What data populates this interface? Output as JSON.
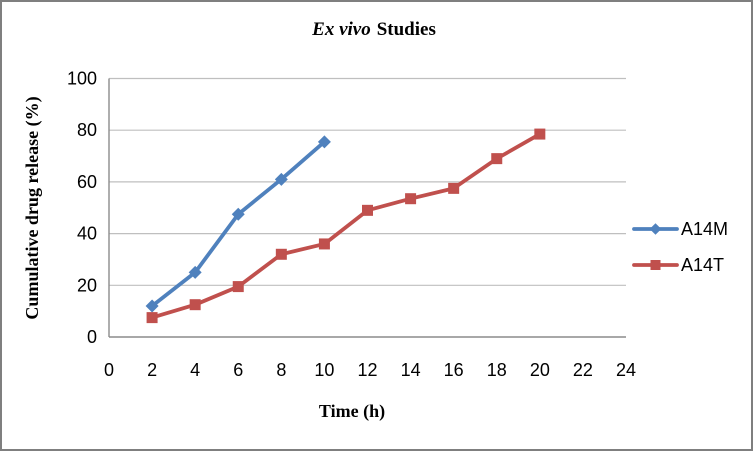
{
  "canvas": {
    "background": "#FFFFFF",
    "border_color": "#7F7F7F"
  },
  "chart_data": {
    "type": "line",
    "title": {
      "italic_part": "Ex vivo",
      "rest_part": "Studies",
      "full": "Ex vivo Studies"
    },
    "xlabel": "Time (h)",
    "ylabel": "Cumulative drug release (%)",
    "xlim": [
      0,
      24
    ],
    "ylim": [
      0,
      100
    ],
    "x_ticks": [
      0,
      2,
      4,
      6,
      8,
      10,
      12,
      14,
      16,
      18,
      20,
      22,
      24
    ],
    "y_ticks": [
      0,
      20,
      40,
      60,
      80,
      100
    ],
    "grid": "horizontal-only",
    "legend_position": "right",
    "series": [
      {
        "name": "A14M",
        "color": "#4F81BD",
        "marker": "diamond",
        "x": [
          2,
          4,
          6,
          8,
          10
        ],
        "values": [
          12,
          25,
          47.5,
          61,
          75.5
        ]
      },
      {
        "name": "A14T",
        "color": "#C0504D",
        "marker": "square",
        "x": [
          2,
          4,
          6,
          8,
          10,
          12,
          14,
          16,
          18,
          20
        ],
        "values": [
          7.5,
          12.5,
          19.5,
          32,
          36,
          49,
          53.5,
          57.5,
          69,
          78.5
        ]
      }
    ],
    "colors": {
      "gridline": "#BFBFBF",
      "axis": "#8C8C8C",
      "tick_text": "#000000"
    }
  }
}
